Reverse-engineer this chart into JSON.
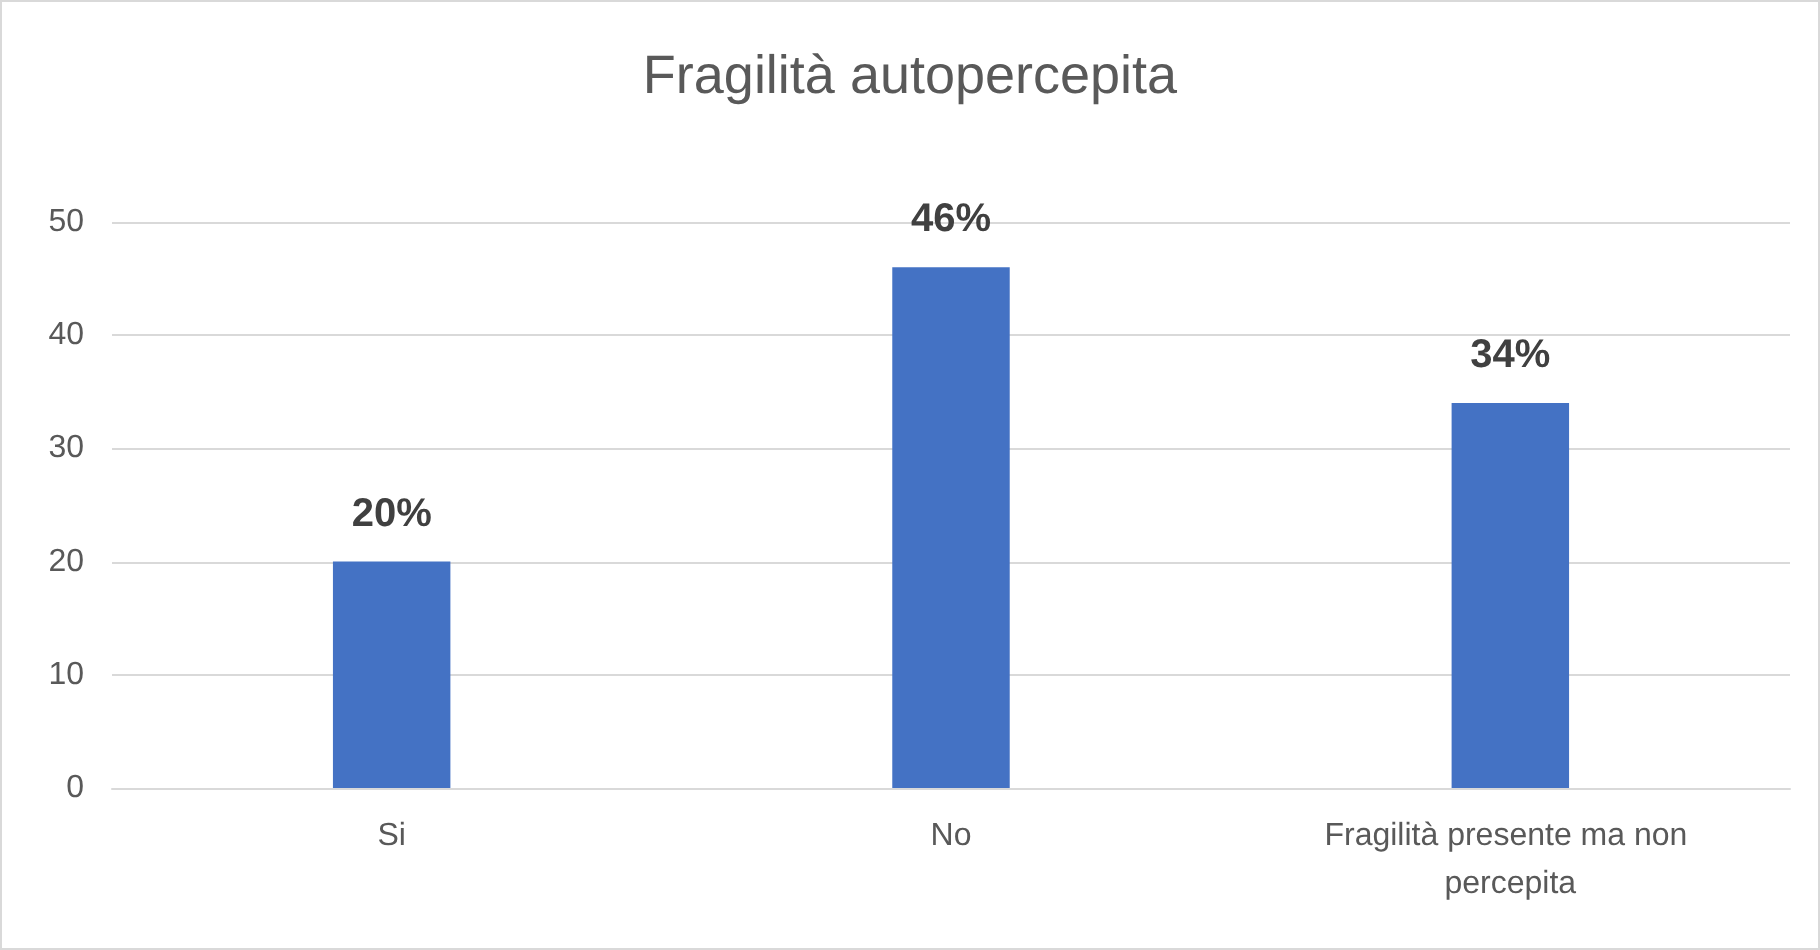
{
  "chart_data": {
    "type": "bar",
    "title": "Fragilità autopercepita",
    "categories": [
      "Si",
      "No",
      "Fragilità presente ma non percepita"
    ],
    "values": [
      20,
      46,
      34
    ],
    "color": "#4472c4",
    "value_labels": [
      "20%",
      "46%",
      "34%"
    ],
    "ylim": [
      0,
      50
    ],
    "yticks": [
      0,
      10,
      20,
      30,
      40,
      50
    ],
    "grid": "y"
  }
}
